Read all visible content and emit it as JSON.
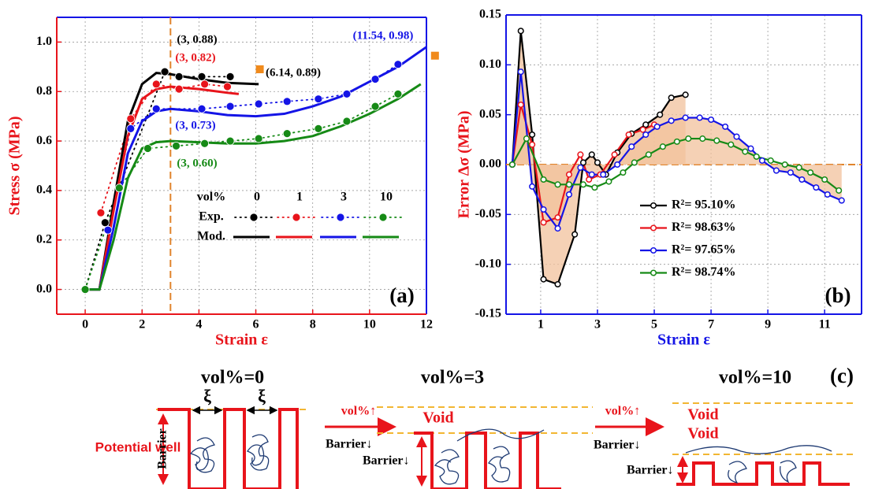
{
  "chart_data": [
    {
      "type": "line",
      "x_label": "Strain ε",
      "y_label": "Stress σ (MPa)",
      "panel_label": "(a)",
      "xlim": [
        -1,
        12
      ],
      "xticks": [
        0,
        2,
        4,
        6,
        8,
        10,
        12
      ],
      "ylim": [
        -0.1,
        1.1
      ],
      "yticks": [
        {
          "value": 0,
          "label": "0.0"
        },
        0.2,
        0.4,
        0.6,
        0.8,
        {
          "value": 1,
          "label": "1.0"
        }
      ],
      "grid": true,
      "reference_x": 3,
      "reference_color": "#e0842c",
      "legend": {
        "header": "vol%",
        "rows": [
          "Exp.",
          "Mod."
        ]
      },
      "series": [
        {
          "name": "0",
          "style": "points",
          "color": "#000000",
          "x": [
            0,
            0.7,
            2.8,
            3.3,
            4.1,
            5.1
          ],
          "values": [
            0,
            0.27,
            0.88,
            0.86,
            0.86,
            0.86
          ]
        },
        {
          "name": "1",
          "style": "points",
          "color": "#e8141b",
          "x": [
            0.55,
            1.6,
            2.5,
            3.3,
            4.2,
            5.0
          ],
          "values": [
            0.31,
            0.69,
            0.83,
            0.81,
            0.83,
            0.82
          ]
        },
        {
          "name": "3",
          "style": "points",
          "color": "#1414e6",
          "x": [
            0.8,
            1.6,
            2.5,
            4.1,
            5.1,
            6.1,
            7.1,
            8.2,
            9.2,
            10.2,
            11.0
          ],
          "values": [
            0.24,
            0.65,
            0.73,
            0.73,
            0.74,
            0.75,
            0.76,
            0.77,
            0.79,
            0.85,
            0.91
          ]
        },
        {
          "name": "10",
          "style": "points",
          "color": "#168a16",
          "x": [
            0,
            1.2,
            2.2,
            3.2,
            4.2,
            5.1,
            6.1,
            7.1,
            8.2,
            9.2,
            10.2,
            11.0
          ],
          "values": [
            0,
            0.41,
            0.57,
            0.58,
            0.59,
            0.6,
            0.61,
            0.63,
            0.65,
            0.68,
            0.74,
            0.79
          ]
        },
        {
          "style": "line",
          "color": "#000000",
          "x": [
            0,
            0.5,
            1,
            1.5,
            2,
            2.5,
            3,
            4,
            5,
            6.1
          ],
          "values": [
            0,
            0,
            0.35,
            0.68,
            0.83,
            0.875,
            0.87,
            0.85,
            0.835,
            0.83
          ]
        },
        {
          "style": "line",
          "color": "#e8141b",
          "x": [
            0,
            0.5,
            1,
            1.5,
            2,
            2.5,
            3,
            4,
            5,
            5.4
          ],
          "values": [
            0,
            0,
            0.32,
            0.62,
            0.77,
            0.81,
            0.82,
            0.81,
            0.795,
            0.79
          ]
        },
        {
          "style": "line",
          "color": "#1414e6",
          "x": [
            0,
            0.5,
            1,
            1.5,
            2,
            2.5,
            3,
            4,
            5,
            6,
            7,
            8,
            9,
            10,
            11,
            12
          ],
          "values": [
            0,
            0,
            0.25,
            0.55,
            0.68,
            0.72,
            0.73,
            0.72,
            0.705,
            0.7,
            0.71,
            0.74,
            0.78,
            0.84,
            0.9,
            0.98
          ]
        },
        {
          "style": "line",
          "color": "#168a16",
          "x": [
            0,
            0.5,
            1,
            1.5,
            2,
            2.5,
            3,
            4,
            5,
            6,
            7,
            8,
            9,
            10,
            11,
            11.8
          ],
          "values": [
            0,
            0,
            0.2,
            0.45,
            0.57,
            0.595,
            0.6,
            0.595,
            0.59,
            0.59,
            0.6,
            0.62,
            0.66,
            0.71,
            0.77,
            0.83
          ]
        },
        {
          "style": "square",
          "color": "#f08a1c",
          "x": [
            6.14,
            12.3
          ],
          "values": [
            0.89,
            0.945
          ]
        }
      ],
      "annotations": [
        {
          "text": "(3, 0.88)",
          "color": "#000000"
        },
        {
          "text": "(3, 0.82)",
          "color": "#e8141b"
        },
        {
          "text": "(6.14, 0.89)",
          "color": "#000000"
        },
        {
          "text": "(11.54, 0.98)",
          "color": "#1414e6"
        },
        {
          "text": "(3, 0.73)",
          "color": "#1414e6"
        },
        {
          "text": "(3, 0.60)",
          "color": "#168a16"
        }
      ]
    },
    {
      "type": "line",
      "x_label": "Strain ε",
      "y_label": "Error Δσ (MPa)",
      "panel_label": "(b)",
      "xlim": [
        -0.22,
        12.3
      ],
      "xticks": [
        1,
        3,
        5,
        7,
        9,
        11
      ],
      "ylim": [
        -0.15,
        0.15
      ],
      "yticks": [
        -0.15,
        {
          "value": -0.1,
          "label": "-0.10"
        },
        -0.05,
        {
          "value": 0,
          "label": "0.00"
        },
        0.05,
        {
          "value": 0.1,
          "label": "0.10"
        },
        0.15
      ],
      "grid": true,
      "reference_y": 0,
      "reference_color": "#e0842c",
      "shade_color": "#f2c29c",
      "series": [
        {
          "name": "R²= 95.10%",
          "style": "open-points",
          "shaded": true,
          "color": "#000000",
          "x": [
            0,
            0.3,
            0.7,
            1.1,
            1.6,
            2.2,
            2.5,
            2.8,
            3.0,
            3.3,
            3.7,
            4.2,
            4.7,
            5.2,
            5.6,
            6.1
          ],
          "values": [
            0,
            0.134,
            0.03,
            -0.115,
            -0.12,
            -0.07,
            0.002,
            0.01,
            0.002,
            -0.01,
            0.012,
            0.031,
            0.04,
            0.05,
            0.067,
            0.07
          ]
        },
        {
          "name": "R²= 98.63%",
          "style": "open-points",
          "color": "#e8141b",
          "x": [
            0,
            0.3,
            0.7,
            1.1,
            1.6,
            2.0,
            2.4,
            2.7,
            3.1,
            3.6,
            4.1,
            4.6,
            5.0
          ],
          "values": [
            0,
            0.06,
            0.02,
            -0.058,
            -0.053,
            -0.01,
            0.01,
            -0.015,
            -0.01,
            0.01,
            0.03,
            0.035,
            0.04
          ]
        },
        {
          "name": "R²= 97.65%",
          "style": "open-points",
          "shaded": true,
          "color": "#1414e6",
          "x": [
            0,
            0.3,
            0.7,
            1.1,
            1.6,
            2.0,
            2.4,
            2.8,
            3.2,
            3.7,
            4.2,
            4.7,
            5.1,
            5.6,
            6.1,
            6.6,
            7.0,
            7.5,
            7.9,
            8.4,
            8.8,
            9.3,
            9.8,
            10.2,
            10.7,
            11.1,
            11.6
          ],
          "values": [
            0,
            0.093,
            -0.022,
            -0.045,
            -0.064,
            -0.03,
            -0.003,
            -0.01,
            -0.01,
            0,
            0.018,
            0.03,
            0.038,
            0.044,
            0.047,
            0.047,
            0.045,
            0.038,
            0.028,
            0.016,
            0.004,
            -0.006,
            -0.008,
            -0.015,
            -0.023,
            -0.03,
            -0.036
          ]
        },
        {
          "name": "R²= 98.74%",
          "style": "open-points",
          "color": "#168a16",
          "x": [
            0,
            0.5,
            1.1,
            1.6,
            2.0,
            2.5,
            2.9,
            3.4,
            3.9,
            4.3,
            4.8,
            5.3,
            5.8,
            6.2,
            6.7,
            7.2,
            7.7,
            8.2,
            8.6,
            9.1,
            9.6,
            10.1,
            10.5,
            11.0,
            11.5
          ],
          "values": [
            0,
            0.026,
            -0.015,
            -0.02,
            -0.02,
            -0.02,
            -0.023,
            -0.017,
            -0.008,
            0.002,
            0.01,
            0.018,
            0.023,
            0.026,
            0.026,
            0.024,
            0.02,
            0.013,
            0.008,
            0.004,
            0,
            -0.003,
            -0.008,
            -0.015,
            -0.026
          ]
        }
      ]
    }
  ],
  "diagram": {
    "panel_label": "(c)",
    "left_label": "Potential well",
    "states": [
      {
        "title": "vol%=0",
        "labels": [
          "Barrier",
          "ξ",
          "ξ"
        ]
      },
      {
        "title": "vol%=3",
        "labels": [
          "vol%↑",
          "Void",
          "Barrier↓",
          "Barrier↓"
        ]
      },
      {
        "title": "vol%=10",
        "labels": [
          "vol%↑",
          "Void",
          "Void",
          "Barrier↓",
          "Barrier↓"
        ]
      }
    ]
  }
}
